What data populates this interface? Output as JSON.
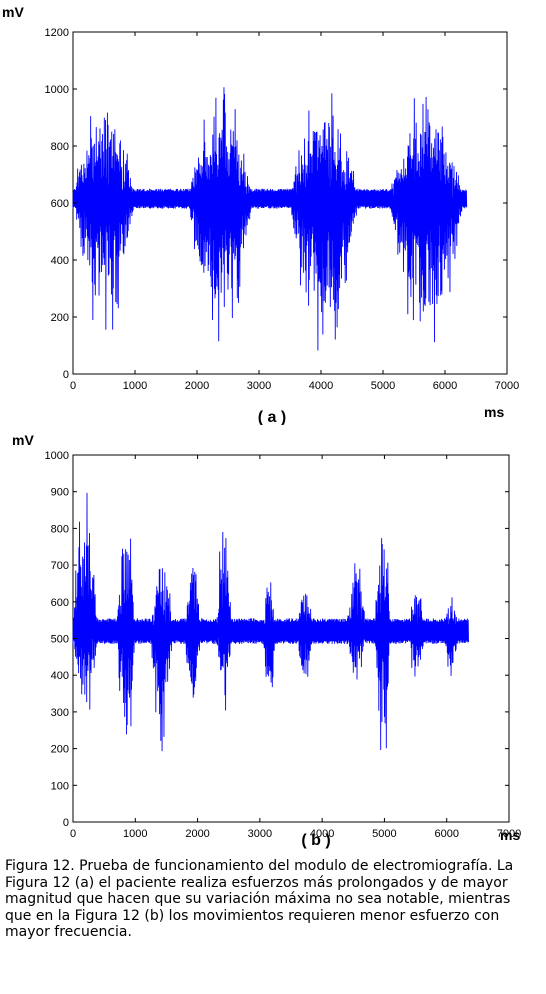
{
  "caption": "Figura 12. Prueba de funcionamiento del modulo de electromiografía. La Figura 12 (a) el paciente realiza esfuerzos más prolongados y  de mayor magnitud que hacen que su variación máxima no sea notable, mientras que en la Figura 12 (b) los movimientos requieren menor esfuerzo con mayor frecuencia.",
  "chart_data": [
    {
      "type": "line",
      "panel_label": "( a )",
      "xlabel": "ms",
      "ylabel": "mV",
      "xlim": [
        0,
        7000
      ],
      "ylim": [
        0,
        1200
      ],
      "x_ticks": [
        0,
        1000,
        2000,
        3000,
        4000,
        5000,
        6000,
        7000
      ],
      "y_ticks": [
        0,
        200,
        400,
        600,
        800,
        1000,
        1200
      ],
      "grid": false,
      "line_color": "#0000ff",
      "series": [
        {
          "x_range": [
            0,
            6350
          ],
          "baseline": 615,
          "bursts": [
            {
              "start": 0,
              "end": 1000,
              "min": 110,
              "max": 1020
            },
            {
              "start": 1850,
              "end": 2900,
              "min": 80,
              "max": 1015
            },
            {
              "start": 3500,
              "end": 4600,
              "min": 30,
              "max": 1020
            },
            {
              "start": 5100,
              "end": 6300,
              "min": 30,
              "max": 1015
            }
          ]
        }
      ]
    },
    {
      "type": "line",
      "panel_label": "( b )",
      "xlabel": "ms",
      "ylabel": "mV",
      "xlim": [
        0,
        7000
      ],
      "ylim": [
        0,
        1000
      ],
      "x_ticks": [
        0,
        1000,
        2000,
        3000,
        4000,
        5000,
        6000,
        7000
      ],
      "y_ticks": [
        0,
        100,
        200,
        300,
        400,
        500,
        600,
        700,
        800,
        900,
        1000
      ],
      "grid": false,
      "line_color": "#0000ff",
      "series": [
        {
          "x_range": [
            0,
            6350
          ],
          "baseline": 520,
          "bursts": [
            {
              "start": 0,
              "end": 400,
              "min": 250,
              "max": 940
            },
            {
              "start": 700,
              "end": 1000,
              "min": 90,
              "max": 900
            },
            {
              "start": 1250,
              "end": 1600,
              "min": 170,
              "max": 750
            },
            {
              "start": 1800,
              "end": 2050,
              "min": 220,
              "max": 790
            },
            {
              "start": 2300,
              "end": 2550,
              "min": 260,
              "max": 840
            },
            {
              "start": 3050,
              "end": 3250,
              "min": 290,
              "max": 680
            },
            {
              "start": 3600,
              "end": 3850,
              "min": 330,
              "max": 690
            },
            {
              "start": 4400,
              "end": 4700,
              "min": 320,
              "max": 750
            },
            {
              "start": 4850,
              "end": 5100,
              "min": 120,
              "max": 900
            },
            {
              "start": 5400,
              "end": 5650,
              "min": 330,
              "max": 670
            },
            {
              "start": 5950,
              "end": 6200,
              "min": 380,
              "max": 650
            }
          ]
        }
      ]
    }
  ]
}
